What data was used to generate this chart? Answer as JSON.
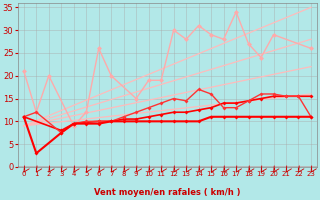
{
  "xlabel": "Vent moyen/en rafales ( km/h )",
  "bg_color": "#b2e8e8",
  "grid_color": "#aaaaaa",
  "xlim": [
    -0.5,
    23.5
  ],
  "ylim": [
    0,
    36
  ],
  "yticks": [
    0,
    5,
    10,
    15,
    20,
    25,
    30,
    35
  ],
  "xticks": [
    0,
    1,
    2,
    3,
    4,
    5,
    6,
    7,
    8,
    9,
    10,
    11,
    12,
    13,
    14,
    15,
    16,
    17,
    18,
    19,
    20,
    21,
    22,
    23
  ],
  "line_pink_high": {
    "x": [
      0,
      1,
      2,
      4,
      5,
      6,
      7,
      9,
      10,
      11,
      12,
      13,
      14,
      15,
      16,
      17,
      18,
      19,
      20,
      23
    ],
    "y": [
      21,
      12,
      20,
      9,
      12,
      26,
      20,
      15,
      19,
      19,
      30,
      28,
      31,
      29,
      28,
      34,
      27,
      24,
      29,
      26
    ],
    "color": "#ffaaaa",
    "lw": 1.0,
    "ms": 2.5
  },
  "line_pink_trend1": {
    "x": [
      0,
      23
    ],
    "y": [
      9,
      35
    ],
    "color": "#ffbbbb",
    "lw": 0.9
  },
  "line_pink_trend2": {
    "x": [
      0,
      23
    ],
    "y": [
      9,
      28
    ],
    "color": "#ffbbbb",
    "lw": 0.9
  },
  "line_pink_trend3": {
    "x": [
      0,
      23
    ],
    "y": [
      9,
      22
    ],
    "color": "#ffbbbb",
    "lw": 0.9
  },
  "line_pink_trend4": {
    "x": [
      0,
      23
    ],
    "y": [
      9,
      16
    ],
    "color": "#ffbbbb",
    "lw": 0.9
  },
  "line_red3": {
    "x": [
      0,
      1,
      3,
      4,
      5,
      6,
      7,
      8,
      9,
      10,
      11,
      12,
      13,
      14,
      15,
      16,
      17,
      18,
      19,
      20,
      21,
      22,
      23
    ],
    "y": [
      11,
      12,
      7.5,
      9.5,
      10,
      10,
      10,
      11,
      12,
      13,
      14,
      15,
      14.5,
      17,
      16,
      13,
      13,
      14.5,
      16,
      16,
      15.5,
      15.5,
      11
    ],
    "color": "#ff3333",
    "lw": 1.0,
    "ms": 2.0
  },
  "line_red2": {
    "x": [
      0,
      3,
      4,
      5,
      6,
      7,
      8,
      9,
      10,
      11,
      12,
      13,
      14,
      15,
      16,
      17,
      18,
      19,
      20,
      21,
      22,
      23
    ],
    "y": [
      11,
      8,
      9.5,
      9.8,
      10,
      10,
      10.5,
      10.5,
      11,
      11.5,
      12,
      12,
      12.5,
      13,
      14,
      14,
      14.5,
      15,
      15.5,
      15.5,
      15.5,
      15.5
    ],
    "color": "#ff0000",
    "lw": 1.2,
    "ms": 2.0
  },
  "line_red1": {
    "x": [
      0,
      1,
      3,
      4,
      5,
      6,
      7,
      8,
      9,
      10,
      11,
      12,
      13,
      14,
      15,
      16,
      17,
      18,
      19,
      20,
      21,
      22,
      23
    ],
    "y": [
      11,
      3,
      7.5,
      9.5,
      9.5,
      9.5,
      10,
      10,
      10,
      10,
      10,
      10,
      10,
      10,
      11,
      11,
      11,
      11,
      11,
      11,
      11,
      11,
      11
    ],
    "color": "#ff0000",
    "lw": 1.5,
    "ms": 2.0
  },
  "tick_color": "#cc0000",
  "label_color": "#cc0000"
}
